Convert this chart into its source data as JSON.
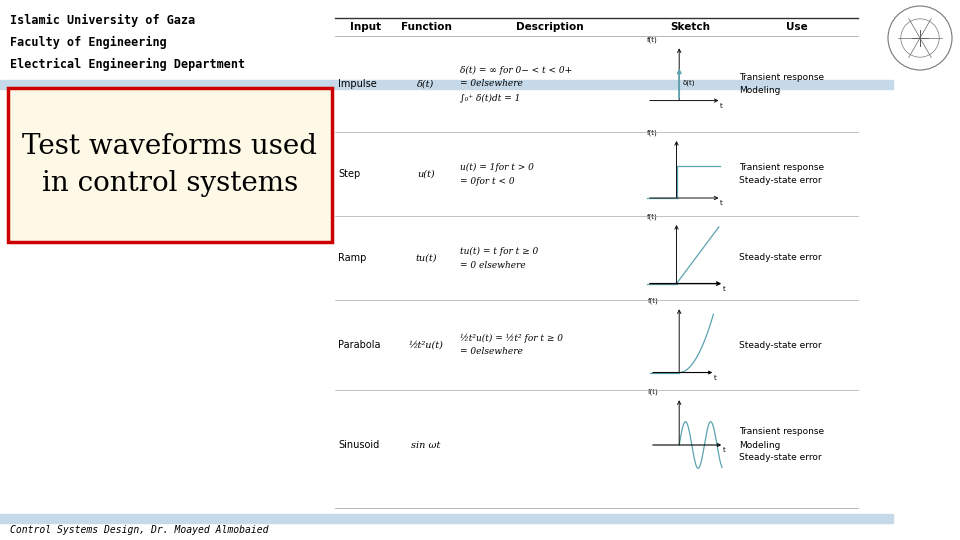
{
  "bg_color": "#ffffff",
  "header_text": [
    "Islamic University of Gaza",
    "Faculty of Engineering",
    "Electrical Engineering Department"
  ],
  "header_font": 8.5,
  "title_text": "Test waveforms used\nin control systems",
  "title_box_bg": "#fef9e7",
  "title_box_edge": "#cc0000",
  "title_font": 20,
  "footer_text": "Control Systems Design, Dr. Moayed Almobaied",
  "footer_font": 7,
  "col_headers": [
    "Input",
    "Function",
    "Description",
    "Sketch",
    "Use"
  ],
  "rows": [
    {
      "input": "Impulse",
      "function": "δ(t)",
      "desc1": "δ(t) = ∞ for 0− < t < 0+",
      "desc2": "= 0elsewhere",
      "desc3": "∫₀⁺ δ(t)dt = 1",
      "use": "Transient response\nModeling",
      "sketch": "impulse"
    },
    {
      "input": "Step",
      "function": "u(t)",
      "desc1": "u(t) = 1for t > 0",
      "desc2": "= 0for t < 0",
      "desc3": "",
      "use": "Transient response\nSteady-state error",
      "sketch": "step"
    },
    {
      "input": "Ramp",
      "function": "tu(t)",
      "desc1": "tu(t) = t for t ≥ 0",
      "desc2": "= 0 elsewhere",
      "desc3": "",
      "use": "Steady-state error",
      "sketch": "ramp"
    },
    {
      "input": "Parabola",
      "function": "½t²u(t)",
      "desc1": "½t²u(t) = ½t² for t ≥ 0",
      "desc2": "= 0elsewhere",
      "desc3": "",
      "use": "Steady-state error",
      "sketch": "parabola"
    },
    {
      "input": "Sinusoid",
      "function": "sin ωt",
      "desc1": "",
      "desc2": "",
      "desc3": "",
      "use": "Transient response\nModeling\nSteady-state error",
      "sketch": "sinusoid"
    }
  ],
  "sketch_color": "#5ba3b0",
  "axis_color": "#111111",
  "blue_bar_color": "#c5d9e8",
  "table_header_line_color": "#333333",
  "sep_color": "#aaaaaa"
}
